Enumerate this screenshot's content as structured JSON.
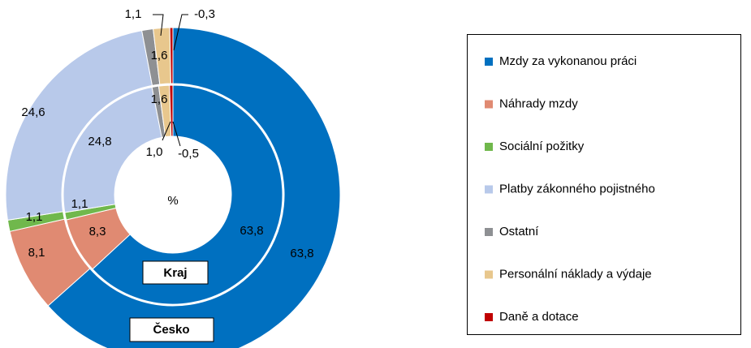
{
  "chart_data": {
    "type": "donut",
    "center_label": "%",
    "categories": [
      "Mzdy za vykonanou práci",
      "Náhrady mzdy",
      "Sociální požitky",
      "Platby zákonného pojistného",
      "Ostatní",
      "Personální náklady a výdaje",
      "Daně a dotace"
    ],
    "colors": [
      "#0070c0",
      "#e08a72",
      "#70b84c",
      "#b8c9ea",
      "#8e9093",
      "#e8c78d",
      "#c00000"
    ],
    "series": [
      {
        "name": "Česko",
        "values": [
          63.8,
          8.1,
          1.1,
          24.6,
          1.1,
          1.6,
          -0.3
        ],
        "value_labels": [
          "63,8",
          "8,1",
          "1,1",
          "24,6",
          "1,1",
          "1,6",
          "-0,3"
        ]
      },
      {
        "name": "Kraj",
        "values": [
          63.8,
          8.3,
          1.1,
          24.8,
          1.0,
          1.6,
          -0.5
        ],
        "value_labels": [
          "63,8",
          "8,3",
          "1,1",
          "24,8",
          "1,0",
          "1,6",
          "-0,5"
        ]
      }
    ]
  }
}
